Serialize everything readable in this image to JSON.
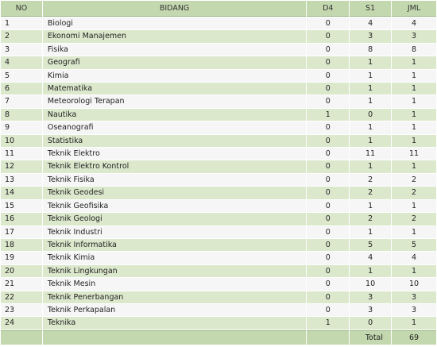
{
  "table": {
    "headers": {
      "no": "NO",
      "bidang": "BIDANG",
      "d4": "D4",
      "s1": "S1",
      "jml": "JML"
    },
    "rows": [
      {
        "no": "1",
        "bidang": "Biologi",
        "d4": "0",
        "s1": "4",
        "jml": "4"
      },
      {
        "no": "2",
        "bidang": "Ekonomi Manajemen",
        "d4": "0",
        "s1": "3",
        "jml": "3"
      },
      {
        "no": "3",
        "bidang": "Fisika",
        "d4": "0",
        "s1": "8",
        "jml": "8"
      },
      {
        "no": "4",
        "bidang": "Geografi",
        "d4": "0",
        "s1": "1",
        "jml": "1"
      },
      {
        "no": "5",
        "bidang": "Kimia",
        "d4": "0",
        "s1": "1",
        "jml": "1"
      },
      {
        "no": "6",
        "bidang": "Matematika",
        "d4": "0",
        "s1": "1",
        "jml": "1"
      },
      {
        "no": "7",
        "bidang": "Meteorologi Terapan",
        "d4": "0",
        "s1": "1",
        "jml": "1"
      },
      {
        "no": "8",
        "bidang": "Nautika",
        "d4": "1",
        "s1": "0",
        "jml": "1"
      },
      {
        "no": "9",
        "bidang": "Oseanografi",
        "d4": "0",
        "s1": "1",
        "jml": "1"
      },
      {
        "no": "10",
        "bidang": "Statistika",
        "d4": "0",
        "s1": "1",
        "jml": "1"
      },
      {
        "no": "11",
        "bidang": "Teknik Elektro",
        "d4": "0",
        "s1": "11",
        "jml": "11"
      },
      {
        "no": "12",
        "bidang": "Teknik Elektro Kontrol",
        "d4": "0",
        "s1": "1",
        "jml": "1"
      },
      {
        "no": "13",
        "bidang": "Teknik Fisika",
        "d4": "0",
        "s1": "2",
        "jml": "2"
      },
      {
        "no": "14",
        "bidang": "Teknik Geodesi",
        "d4": "0",
        "s1": "2",
        "jml": "2"
      },
      {
        "no": "15",
        "bidang": "Teknik Geofisika",
        "d4": "0",
        "s1": "1",
        "jml": "1"
      },
      {
        "no": "16",
        "bidang": "Teknik Geologi",
        "d4": "0",
        "s1": "2",
        "jml": "2"
      },
      {
        "no": "17",
        "bidang": "Teknik Industri",
        "d4": "0",
        "s1": "1",
        "jml": "1"
      },
      {
        "no": "18",
        "bidang": "Teknik Informatika",
        "d4": "0",
        "s1": "5",
        "jml": "5"
      },
      {
        "no": "19",
        "bidang": "Teknik Kimia",
        "d4": "0",
        "s1": "4",
        "jml": "4"
      },
      {
        "no": "20",
        "bidang": "Teknik Lingkungan",
        "d4": "0",
        "s1": "1",
        "jml": "1"
      },
      {
        "no": "21",
        "bidang": "Teknik Mesin",
        "d4": "0",
        "s1": "10",
        "jml": "10"
      },
      {
        "no": "22",
        "bidang": "Teknik Penerbangan",
        "d4": "0",
        "s1": "3",
        "jml": "3"
      },
      {
        "no": "23",
        "bidang": "Teknik Perkapalan",
        "d4": "0",
        "s1": "3",
        "jml": "3"
      },
      {
        "no": "24",
        "bidang": "Teknika",
        "d4": "1",
        "s1": "0",
        "jml": "1"
      }
    ],
    "footer": {
      "label": "Total",
      "value": "69"
    }
  },
  "colors": {
    "header_bg": "#c4d8af",
    "row_odd_bg": "#f6f6f6",
    "row_even_bg": "#dbe8cc",
    "text": "#222222"
  }
}
